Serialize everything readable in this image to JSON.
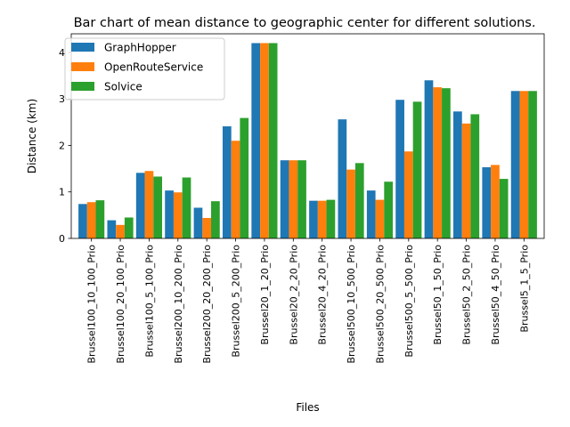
{
  "chart_data": {
    "type": "bar",
    "title": "Bar chart of mean distance to geographic center for different solutions.",
    "xlabel": "Files",
    "ylabel": "Distance (km)",
    "ylim": [
      0,
      4.4
    ],
    "yticks": [
      0,
      1,
      2,
      3,
      4
    ],
    "grid": false,
    "legend_position": "top-left",
    "categories": [
      "Brussel100_10_100_Prio",
      "Brussel100_20_100_Prio",
      "Brussel100_5_100_Prio",
      "Brussel200_10_200_Prio",
      "Brussel200_20_200_Prio",
      "Brussel200_5_200_Prio",
      "Brussel20_1_20_Prio",
      "Brussel20_2_20_Prio",
      "Brussel20_4_20_Prio",
      "Brussel500_10_500_Prio",
      "Brussel500_20_500_Prio",
      "Brussel500_5_500_Prio",
      "Brussel50_1_50_Prio",
      "Brussel50_2_50_Prio",
      "Brussel50_4_50_Prio",
      "Brussel5_1_5_Prio"
    ],
    "series": [
      {
        "name": "GraphHopper",
        "color": "#1f77b4",
        "values": [
          0.74,
          0.39,
          1.41,
          1.03,
          0.66,
          2.41,
          4.2,
          1.68,
          0.81,
          2.56,
          1.03,
          2.98,
          3.4,
          2.73,
          1.53,
          3.17
        ]
      },
      {
        "name": "OpenRouteService",
        "color": "#ff7f0e",
        "values": [
          0.78,
          0.29,
          1.45,
          0.99,
          0.44,
          2.1,
          4.2,
          1.68,
          0.81,
          1.48,
          0.83,
          1.87,
          3.25,
          2.47,
          1.58,
          3.17
        ]
      },
      {
        "name": "Solvice",
        "color": "#2ca02c",
        "values": [
          0.82,
          0.45,
          1.33,
          1.31,
          0.8,
          2.59,
          4.2,
          1.68,
          0.83,
          1.62,
          1.22,
          2.94,
          3.23,
          2.67,
          1.28,
          3.17
        ]
      }
    ]
  }
}
